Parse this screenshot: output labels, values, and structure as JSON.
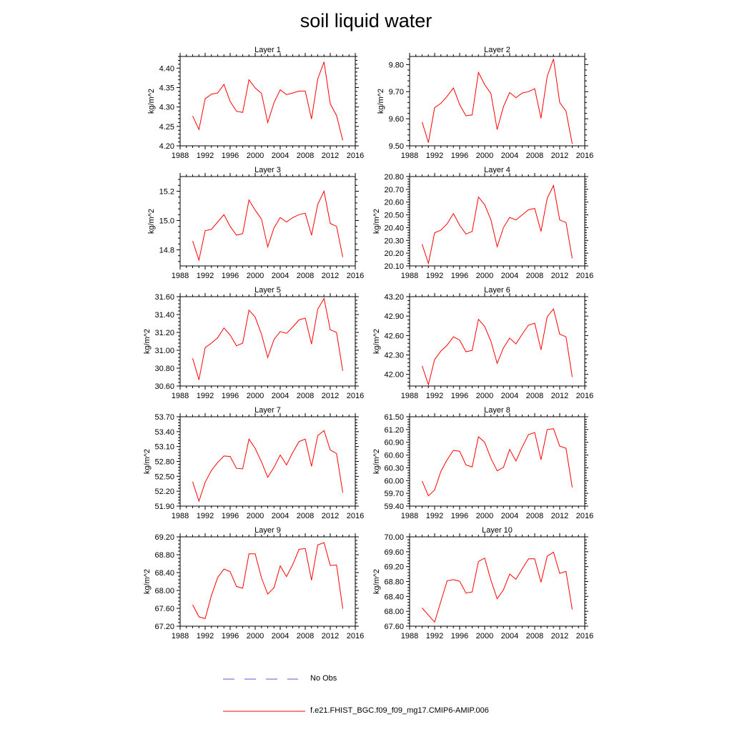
{
  "title": "soil liquid water",
  "legend": {
    "obs_label": "No Obs",
    "obs_color": "#5a5ad0",
    "model_label": "f.e21.FHIST_BGC.f09_f09_mg17.CMIP6-AMIP.006",
    "model_color": "#ff0000"
  },
  "chart_data": [
    {
      "type": "line",
      "title": "Layer 1",
      "ylabel": "kg/m^2",
      "xlim": [
        1988,
        2016
      ],
      "xticks": [
        "1988",
        "1992",
        "1996",
        "2000",
        "2004",
        "2008",
        "2012",
        "2016"
      ],
      "ylim": [
        4.2,
        4.43
      ],
      "yticks": [
        "4.20",
        "4.25",
        "4.30",
        "4.35",
        "4.40"
      ],
      "x": [
        1990,
        1991,
        1992,
        1993,
        1994,
        1995,
        1996,
        1997,
        1998,
        1999,
        2000,
        2001,
        2002,
        2003,
        2004,
        2005,
        2006,
        2007,
        2008,
        2009,
        2010,
        2011,
        2012,
        2013,
        2014
      ],
      "series": [
        {
          "values": [
            4.277,
            4.242,
            4.321,
            4.333,
            4.336,
            4.358,
            4.314,
            4.289,
            4.286,
            4.37,
            4.349,
            4.335,
            4.26,
            4.311,
            4.344,
            4.332,
            4.336,
            4.341,
            4.341,
            4.269,
            4.372,
            4.416,
            4.308,
            4.278,
            4.214
          ]
        }
      ]
    },
    {
      "type": "line",
      "title": "Layer 2",
      "ylabel": "kg/m^2",
      "xlim": [
        1988,
        2016
      ],
      "xticks": [
        "1988",
        "1992",
        "1996",
        "2000",
        "2004",
        "2008",
        "2012",
        "2016"
      ],
      "ylim": [
        9.5,
        9.83
      ],
      "yticks": [
        "9.50",
        "9.60",
        "9.70",
        "9.80"
      ],
      "x": [
        1990,
        1991,
        1992,
        1993,
        1994,
        1995,
        1996,
        1997,
        1998,
        1999,
        2000,
        2001,
        2002,
        2003,
        2004,
        2005,
        2006,
        2007,
        2008,
        2009,
        2010,
        2011,
        2012,
        2013,
        2014
      ],
      "series": [
        {
          "values": [
            9.588,
            9.512,
            9.641,
            9.657,
            9.683,
            9.714,
            9.652,
            9.611,
            9.614,
            9.771,
            9.726,
            9.693,
            9.56,
            9.645,
            9.697,
            9.678,
            9.695,
            9.7,
            9.711,
            9.602,
            9.757,
            9.821,
            9.66,
            9.628,
            9.507
          ]
        }
      ]
    },
    {
      "type": "line",
      "title": "Layer 3",
      "ylabel": "kg/m^2",
      "xlim": [
        1988,
        2016
      ],
      "xticks": [
        "1988",
        "1992",
        "1996",
        "2000",
        "2004",
        "2008",
        "2012",
        "2016"
      ],
      "ylim": [
        14.69,
        15.3
      ],
      "yticks": [
        "14.8",
        "15.0",
        "15.2"
      ],
      "x": [
        1990,
        1991,
        1992,
        1993,
        1994,
        1995,
        1996,
        1997,
        1998,
        1999,
        2000,
        2001,
        2002,
        2003,
        2004,
        2005,
        2006,
        2007,
        2008,
        2009,
        2010,
        2011,
        2012,
        2013,
        2014
      ],
      "series": [
        {
          "values": [
            14.86,
            14.73,
            14.93,
            14.94,
            14.99,
            15.04,
            14.96,
            14.9,
            14.91,
            15.14,
            15.07,
            15.01,
            14.82,
            14.95,
            15.02,
            14.99,
            15.02,
            15.04,
            15.05,
            14.9,
            15.11,
            15.2,
            14.98,
            14.96,
            14.75
          ]
        }
      ]
    },
    {
      "type": "line",
      "title": "Layer 4",
      "ylabel": "kg/m^2",
      "xlim": [
        1988,
        2016
      ],
      "xticks": [
        "1988",
        "1992",
        "1996",
        "2000",
        "2004",
        "2008",
        "2012",
        "2016"
      ],
      "ylim": [
        20.1,
        20.8
      ],
      "yticks": [
        "20.10",
        "20.20",
        "20.30",
        "20.40",
        "20.50",
        "20.60",
        "20.70",
        "20.80"
      ],
      "x": [
        1990,
        1991,
        1992,
        1993,
        1994,
        1995,
        1996,
        1997,
        1998,
        1999,
        2000,
        2001,
        2002,
        2003,
        2004,
        2005,
        2006,
        2007,
        2008,
        2009,
        2010,
        2011,
        2012,
        2013,
        2014
      ],
      "series": [
        {
          "values": [
            20.27,
            20.12,
            20.36,
            20.38,
            20.43,
            20.51,
            20.42,
            20.35,
            20.37,
            20.64,
            20.58,
            20.46,
            20.25,
            20.4,
            20.48,
            20.46,
            20.5,
            20.54,
            20.55,
            20.37,
            20.63,
            20.73,
            20.46,
            20.44,
            20.16
          ]
        }
      ]
    },
    {
      "type": "line",
      "title": "Layer 5",
      "ylabel": "kg/m^2",
      "xlim": [
        1988,
        2016
      ],
      "xticks": [
        "1988",
        "1992",
        "1996",
        "2000",
        "2004",
        "2008",
        "2012",
        "2016"
      ],
      "ylim": [
        30.6,
        31.6
      ],
      "yticks": [
        "30.60",
        "30.80",
        "31.00",
        "31.20",
        "31.40",
        "31.60"
      ],
      "x": [
        1990,
        1991,
        1992,
        1993,
        1994,
        1995,
        1996,
        1997,
        1998,
        1999,
        2000,
        2001,
        2002,
        2003,
        2004,
        2005,
        2006,
        2007,
        2008,
        2009,
        2010,
        2011,
        2012,
        2013,
        2014
      ],
      "series": [
        {
          "values": [
            30.91,
            30.67,
            31.03,
            31.08,
            31.14,
            31.25,
            31.17,
            31.05,
            31.08,
            31.45,
            31.37,
            31.18,
            30.92,
            31.12,
            31.21,
            31.19,
            31.26,
            31.34,
            31.36,
            31.07,
            31.46,
            31.58,
            31.23,
            31.2,
            30.77
          ]
        }
      ]
    },
    {
      "type": "line",
      "title": "Layer 6",
      "ylabel": "kg/m^2",
      "xlim": [
        1988,
        2016
      ],
      "xticks": [
        "1988",
        "1992",
        "1996",
        "2000",
        "2004",
        "2008",
        "2012",
        "2016"
      ],
      "ylim": [
        41.82,
        43.2
      ],
      "yticks": [
        "42.00",
        "42.30",
        "42.60",
        "42.90",
        "43.20"
      ],
      "x": [
        1990,
        1991,
        1992,
        1993,
        1994,
        1995,
        1996,
        1997,
        1998,
        1999,
        2000,
        2001,
        2002,
        2003,
        2004,
        2005,
        2006,
        2007,
        2008,
        2009,
        2010,
        2011,
        2012,
        2013,
        2014
      ],
      "series": [
        {
          "values": [
            42.13,
            41.84,
            42.23,
            42.36,
            42.45,
            42.58,
            42.53,
            42.35,
            42.37,
            42.85,
            42.74,
            42.51,
            42.17,
            42.41,
            42.56,
            42.47,
            42.62,
            42.76,
            42.79,
            42.38,
            42.89,
            43.01,
            42.62,
            42.58,
            41.96
          ]
        }
      ]
    },
    {
      "type": "line",
      "title": "Layer 7",
      "ylabel": "kg/m^2",
      "xlim": [
        1988,
        2016
      ],
      "xticks": [
        "1988",
        "1992",
        "1996",
        "2000",
        "2004",
        "2008",
        "2012",
        "2016"
      ],
      "ylim": [
        51.9,
        53.7
      ],
      "yticks": [
        "51.90",
        "52.20",
        "52.50",
        "52.80",
        "53.10",
        "53.40",
        "53.70"
      ],
      "x": [
        1990,
        1991,
        1992,
        1993,
        1994,
        1995,
        1996,
        1997,
        1998,
        1999,
        2000,
        2001,
        2002,
        2003,
        2004,
        2005,
        2006,
        2007,
        2008,
        2009,
        2010,
        2011,
        2012,
        2013,
        2014
      ],
      "series": [
        {
          "values": [
            52.39,
            52.0,
            52.38,
            52.62,
            52.78,
            52.91,
            52.9,
            52.66,
            52.65,
            53.25,
            53.06,
            52.79,
            52.48,
            52.68,
            52.93,
            52.73,
            52.98,
            53.2,
            53.25,
            52.7,
            53.32,
            53.42,
            53.03,
            52.96,
            52.17
          ]
        }
      ]
    },
    {
      "type": "line",
      "title": "Layer 8",
      "ylabel": "kg/m^2",
      "xlim": [
        1988,
        2016
      ],
      "xticks": [
        "1988",
        "1992",
        "1996",
        "2000",
        "2004",
        "2008",
        "2012",
        "2016"
      ],
      "ylim": [
        59.4,
        61.5
      ],
      "yticks": [
        "59.40",
        "59.70",
        "60.00",
        "60.30",
        "60.60",
        "60.90",
        "61.20",
        "61.50"
      ],
      "x": [
        1990,
        1991,
        1992,
        1993,
        1994,
        1995,
        1996,
        1997,
        1998,
        1999,
        2000,
        2001,
        2002,
        2003,
        2004,
        2005,
        2006,
        2007,
        2008,
        2009,
        2010,
        2011,
        2012,
        2013,
        2014
      ],
      "series": [
        {
          "values": [
            59.99,
            59.64,
            59.78,
            60.22,
            60.49,
            60.71,
            60.69,
            60.37,
            60.32,
            61.03,
            60.9,
            60.52,
            60.23,
            60.31,
            60.73,
            60.46,
            60.79,
            61.08,
            61.13,
            60.49,
            61.2,
            61.22,
            60.81,
            60.76,
            59.84
          ]
        }
      ]
    },
    {
      "type": "line",
      "title": "Layer 9",
      "ylabel": "kg/m^2",
      "xlim": [
        1988,
        2016
      ],
      "xticks": [
        "1988",
        "1992",
        "1996",
        "2000",
        "2004",
        "2008",
        "2012",
        "2016"
      ],
      "ylim": [
        67.2,
        69.2
      ],
      "yticks": [
        "67.20",
        "67.60",
        "68.00",
        "68.40",
        "68.80",
        "69.20"
      ],
      "x": [
        1990,
        1991,
        1992,
        1993,
        1994,
        1995,
        1996,
        1997,
        1998,
        1999,
        2000,
        2001,
        2002,
        2003,
        2004,
        2005,
        2006,
        2007,
        2008,
        2009,
        2010,
        2011,
        2012,
        2013,
        2014
      ],
      "series": [
        {
          "values": [
            67.68,
            67.41,
            67.37,
            67.89,
            68.29,
            68.48,
            68.42,
            68.09,
            68.05,
            68.82,
            68.82,
            68.28,
            67.92,
            68.06,
            68.55,
            68.31,
            68.58,
            68.92,
            68.94,
            68.23,
            69.02,
            69.07,
            68.56,
            68.57,
            67.59
          ]
        }
      ]
    },
    {
      "type": "line",
      "title": "Layer 10",
      "ylabel": "kg/m^2",
      "xlim": [
        1988,
        2016
      ],
      "xticks": [
        "1988",
        "1992",
        "1996",
        "2000",
        "2004",
        "2008",
        "2012",
        "2016"
      ],
      "ylim": [
        67.6,
        70.0
      ],
      "yticks": [
        "67.60",
        "68.00",
        "68.40",
        "68.80",
        "69.20",
        "69.60",
        "70.00"
      ],
      "x": [
        1990,
        1991,
        1992,
        1993,
        1994,
        1995,
        1996,
        1997,
        1998,
        1999,
        2000,
        2001,
        2002,
        2003,
        2004,
        2005,
        2006,
        2007,
        2008,
        2009,
        2010,
        2011,
        2012,
        2013,
        2014
      ],
      "series": [
        {
          "values": [
            68.09,
            67.9,
            67.71,
            68.27,
            68.82,
            68.85,
            68.81,
            68.49,
            68.52,
            69.34,
            69.43,
            68.83,
            68.34,
            68.58,
            69.0,
            68.86,
            69.14,
            69.41,
            69.41,
            68.78,
            69.48,
            69.59,
            69.02,
            69.07,
            68.05
          ]
        }
      ]
    }
  ]
}
